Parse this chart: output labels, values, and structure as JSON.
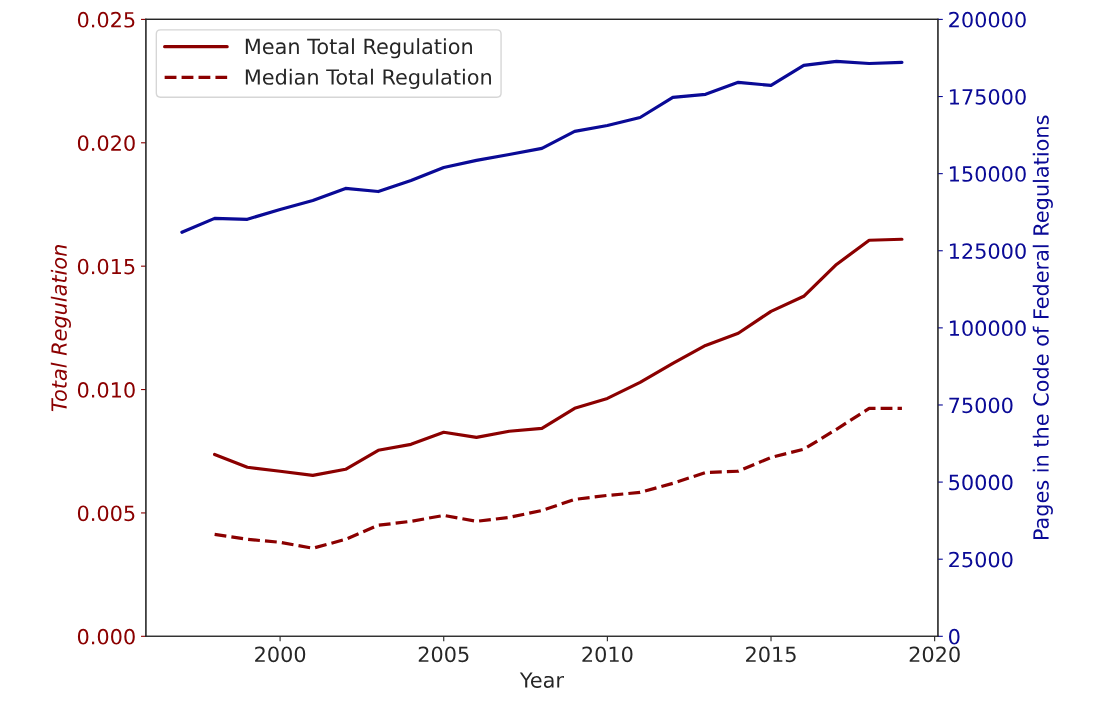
{
  "chart_data": {
    "type": "line",
    "xlabel": "Year",
    "ylabel": "Total Regulation",
    "y2label": "Pages in the Code of Federal Regulations",
    "x": [
      1997,
      1998,
      1999,
      2000,
      2001,
      2002,
      2003,
      2004,
      2005,
      2006,
      2007,
      2008,
      2009,
      2010,
      2011,
      2012,
      2013,
      2014,
      2015,
      2016,
      2017,
      2018,
      2019
    ],
    "series": [
      {
        "name": "Mean Total Regulation",
        "color": "#8b0000",
        "line_style": "solid",
        "x": [
          1998,
          1999,
          2000,
          2001,
          2002,
          2003,
          2004,
          2005,
          2006,
          2007,
          2008,
          2009,
          2010,
          2011,
          2012,
          2013,
          2014,
          2015,
          2016,
          2017,
          2018,
          2019
        ],
        "values": [
          0.00737,
          0.00685,
          0.00669,
          0.00652,
          0.00677,
          0.00754,
          0.00778,
          0.00827,
          0.00806,
          0.00831,
          0.00843,
          0.00924,
          0.00964,
          0.01029,
          0.01106,
          0.01179,
          0.01228,
          0.01317,
          0.01378,
          0.01507,
          0.01605,
          0.01609
        ]
      },
      {
        "name": "Median Total Regulation",
        "color": "#8b0000",
        "line_style": "dashed",
        "x": [
          1998,
          1999,
          2000,
          2001,
          2002,
          2003,
          2004,
          2005,
          2006,
          2007,
          2008,
          2009,
          2010,
          2011,
          2012,
          2013,
          2014,
          2015,
          2016,
          2017,
          2018,
          2019
        ],
        "values": [
          0.00413,
          0.00393,
          0.00381,
          0.00357,
          0.00393,
          0.0045,
          0.00466,
          0.0049,
          0.00466,
          0.00482,
          0.0051,
          0.00555,
          0.00571,
          0.00583,
          0.0062,
          0.00664,
          0.00669,
          0.00725,
          0.00758,
          0.00839,
          0.00924,
          0.00924
        ]
      },
      {
        "color": "#0a0a96",
        "line_style": "solid",
        "axis": "y2",
        "values": [
          131000,
          135500,
          135200,
          138400,
          141300,
          145200,
          144200,
          147800,
          152000,
          154300,
          156200,
          158200,
          163700,
          165600,
          168200,
          174700,
          175700,
          179600,
          178600,
          185100,
          186400,
          185700,
          186100
        ]
      }
    ],
    "xlim": [
      1995.9,
      2020.1
    ],
    "xticks": [
      2000,
      2005,
      2010,
      2015,
      2020
    ],
    "ylim": [
      0,
      0.025
    ],
    "yticks": [
      {
        "value": 0,
        "label": "0.000"
      },
      {
        "value": 0.005,
        "label": "0.005"
      },
      {
        "value": 0.01,
        "label": "0.010"
      },
      {
        "value": 0.015,
        "label": "0.015"
      },
      {
        "value": 0.02,
        "label": "0.020"
      },
      {
        "value": 0.025,
        "label": "0.025"
      }
    ],
    "y2lim": [
      0,
      200000
    ],
    "y2ticks": [
      0,
      25000,
      50000,
      75000,
      100000,
      125000,
      150000,
      175000,
      200000
    ],
    "grid": false,
    "legend": "top left"
  }
}
